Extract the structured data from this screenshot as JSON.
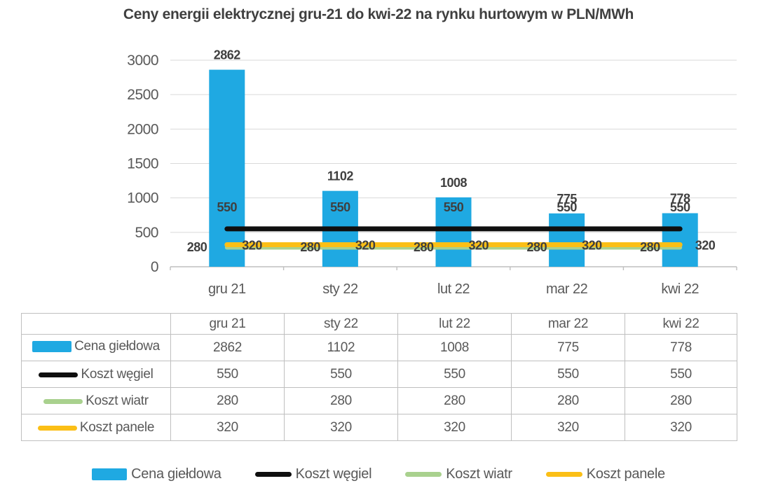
{
  "title": "Ceny energii elektrycznej gru-21 do kwi-22 na rynku hurtowym w PLN/MWh",
  "colors": {
    "bar": "#1FA9E2",
    "coal": "#0f0f0f",
    "wind": "#A9D18E",
    "panels": "#FBBF16",
    "text_dark": "#3f3f3f",
    "text_gray": "#595959",
    "grid": "#d9d9d9",
    "axis": "#bfbfbf"
  },
  "chart_data": {
    "type": "bar",
    "title": "Ceny energii elektrycznej gru-21 do kwi-22 na rynku hurtowym w PLN/MWh",
    "categories": [
      "gru 21",
      "sty 22",
      "lut 22",
      "mar 22",
      "kwi 22"
    ],
    "series": [
      {
        "name": "Cena giełdowa",
        "type": "bar",
        "color_key": "bar",
        "values": [
          2862,
          1102,
          1008,
          775,
          778
        ],
        "label_position": "above"
      },
      {
        "name": "Koszt węgiel",
        "type": "line",
        "color_key": "coal",
        "values": [
          550,
          550,
          550,
          550,
          550
        ],
        "label_position": "above-line",
        "draw_order": 3
      },
      {
        "name": "Koszt wiatr",
        "type": "line",
        "color_key": "wind",
        "values": [
          280,
          280,
          280,
          280,
          280
        ],
        "label_position": "left-of-bar",
        "draw_order": 1
      },
      {
        "name": "Koszt panele",
        "type": "line",
        "color_key": "panels",
        "values": [
          320,
          320,
          320,
          320,
          320
        ],
        "label_position": "right-of-bar",
        "draw_order": 2
      }
    ],
    "xlabel": "",
    "ylabel": "",
    "ylim": [
      0,
      3000
    ],
    "yticks": [
      0,
      500,
      1000,
      1500,
      2000,
      2500,
      3000
    ],
    "grid": true,
    "legend_position": "bottom"
  },
  "table": {
    "corner_label": "",
    "columns": [
      "gru 21",
      "sty 22",
      "lut 22",
      "mar 22",
      "kwi 22"
    ],
    "rows": [
      {
        "label": "Cena giełdowa",
        "marker": "bar-swatch",
        "color_key": "bar",
        "values": [
          "2862",
          "1102",
          "1008",
          "775",
          "778"
        ]
      },
      {
        "label": "Koszt węgiel",
        "marker": "line-swatch",
        "color_key": "coal",
        "values": [
          "550",
          "550",
          "550",
          "550",
          "550"
        ]
      },
      {
        "label": "Koszt wiatr",
        "marker": "line-swatch",
        "color_key": "wind",
        "values": [
          "280",
          "280",
          "280",
          "280",
          "280"
        ]
      },
      {
        "label": "Koszt panele",
        "marker": "line-swatch",
        "color_key": "panels",
        "values": [
          "320",
          "320",
          "320",
          "320",
          "320"
        ]
      }
    ]
  },
  "legend": {
    "items": [
      {
        "label": "Cena giełdowa",
        "marker": "bar-swatch",
        "color_key": "bar"
      },
      {
        "label": "Koszt węgiel",
        "marker": "line-swatch",
        "color_key": "coal"
      },
      {
        "label": "Koszt wiatr",
        "marker": "line-swatch",
        "color_key": "wind"
      },
      {
        "label": "Koszt panele",
        "marker": "line-swatch",
        "color_key": "panels"
      }
    ]
  }
}
